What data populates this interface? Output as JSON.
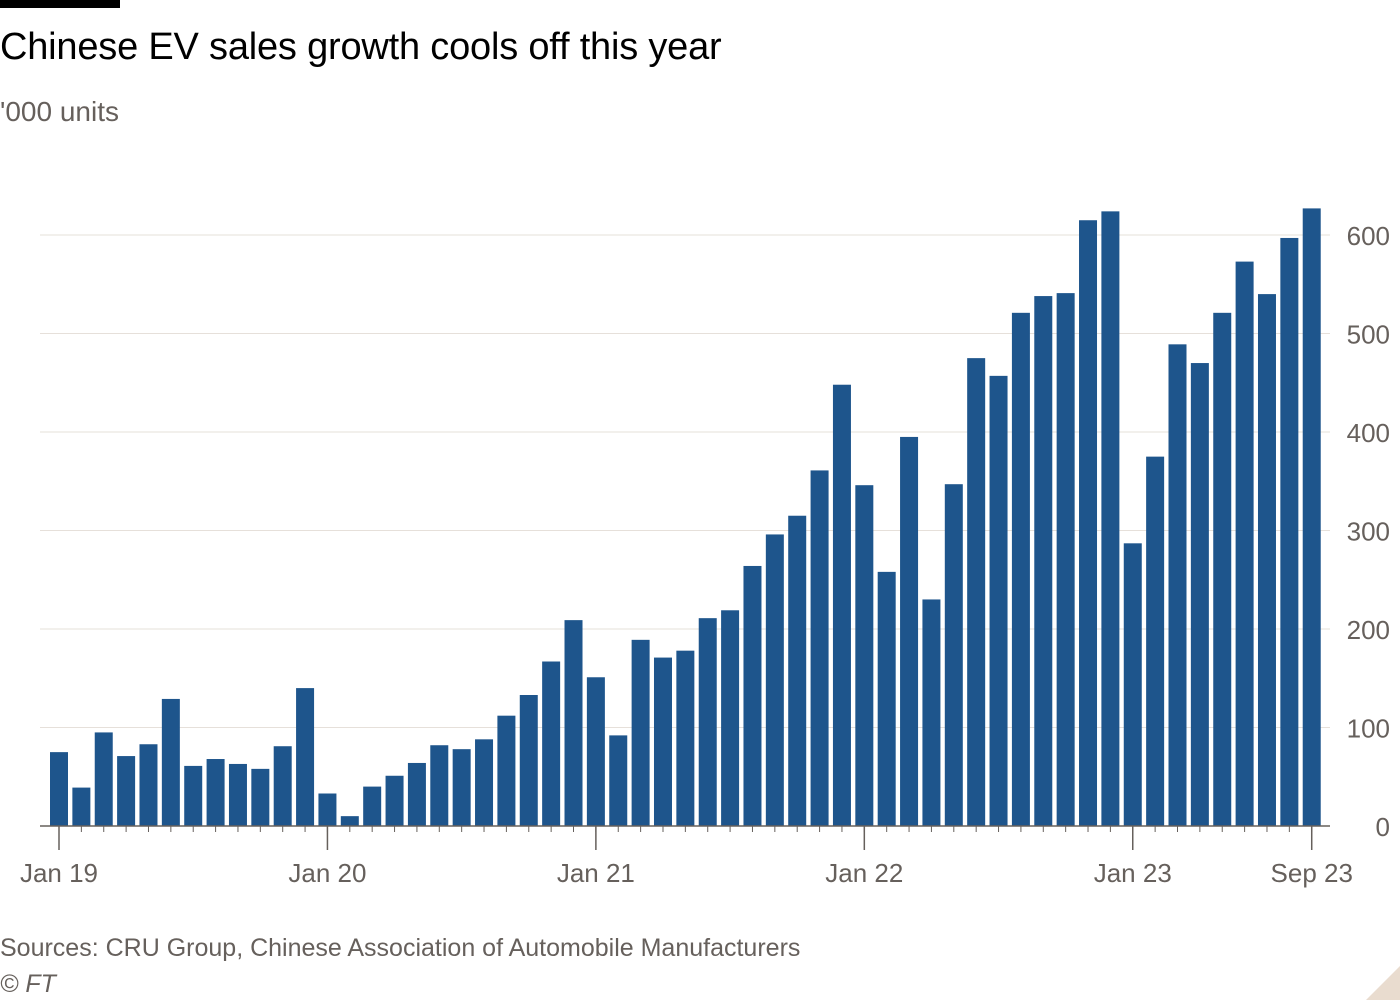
{
  "title": "Chinese EV sales growth cools off this year",
  "subtitle": "'000 units",
  "source": "Sources: CRU Group, Chinese Association of Automobile Manufacturers",
  "copyright": "© FT",
  "colors": {
    "bar": "#1e558c",
    "grid": "#e6e0da",
    "axis": "#66605c",
    "text": "#66605c"
  },
  "chart_data": {
    "type": "bar",
    "title": "Chinese EV sales growth cools off this year",
    "ylabel": "'000 units",
    "xlabel": "",
    "ylim": [
      0,
      650
    ],
    "yticks": [
      0,
      100,
      200,
      300,
      400,
      500,
      600
    ],
    "y_axis_side": "right",
    "grid": true,
    "legend": "none",
    "categories": [
      "Jan 19",
      "Feb 19",
      "Mar 19",
      "Apr 19",
      "May 19",
      "Jun 19",
      "Jul 19",
      "Aug 19",
      "Sep 19",
      "Oct 19",
      "Nov 19",
      "Dec 19",
      "Jan 20",
      "Feb 20",
      "Mar 20",
      "Apr 20",
      "May 20",
      "Jun 20",
      "Jul 20",
      "Aug 20",
      "Sep 20",
      "Oct 20",
      "Nov 20",
      "Dec 20",
      "Jan 21",
      "Feb 21",
      "Mar 21",
      "Apr 21",
      "May 21",
      "Jun 21",
      "Jul 21",
      "Aug 21",
      "Sep 21",
      "Oct 21",
      "Nov 21",
      "Dec 21",
      "Jan 22",
      "Feb 22",
      "Mar 22",
      "Apr 22",
      "May 22",
      "Jun 22",
      "Jul 22",
      "Aug 22",
      "Sep 22",
      "Oct 22",
      "Nov 22",
      "Dec 22",
      "Jan 23",
      "Feb 23",
      "Mar 23",
      "Apr 23",
      "May 23",
      "Jun 23",
      "Jul 23",
      "Aug 23",
      "Sep 23"
    ],
    "values": [
      75,
      39,
      95,
      71,
      83,
      129,
      61,
      68,
      63,
      58,
      81,
      140,
      33,
      10,
      40,
      51,
      64,
      82,
      78,
      88,
      112,
      133,
      167,
      209,
      151,
      92,
      189,
      171,
      178,
      211,
      219,
      264,
      296,
      315,
      361,
      448,
      346,
      258,
      395,
      230,
      347,
      475,
      457,
      521,
      538,
      541,
      615,
      624,
      287,
      375,
      489,
      470,
      521,
      573,
      540,
      597,
      627
    ],
    "xtick_labels": [
      {
        "category": "Jan 19",
        "label": "Jan 19"
      },
      {
        "category": "Jan 20",
        "label": "Jan 20"
      },
      {
        "category": "Jan 21",
        "label": "Jan 21"
      },
      {
        "category": "Jan 22",
        "label": "Jan 22"
      },
      {
        "category": "Jan 23",
        "label": "Jan 23"
      },
      {
        "category": "Sep 23",
        "label": "Sep 23"
      }
    ]
  }
}
